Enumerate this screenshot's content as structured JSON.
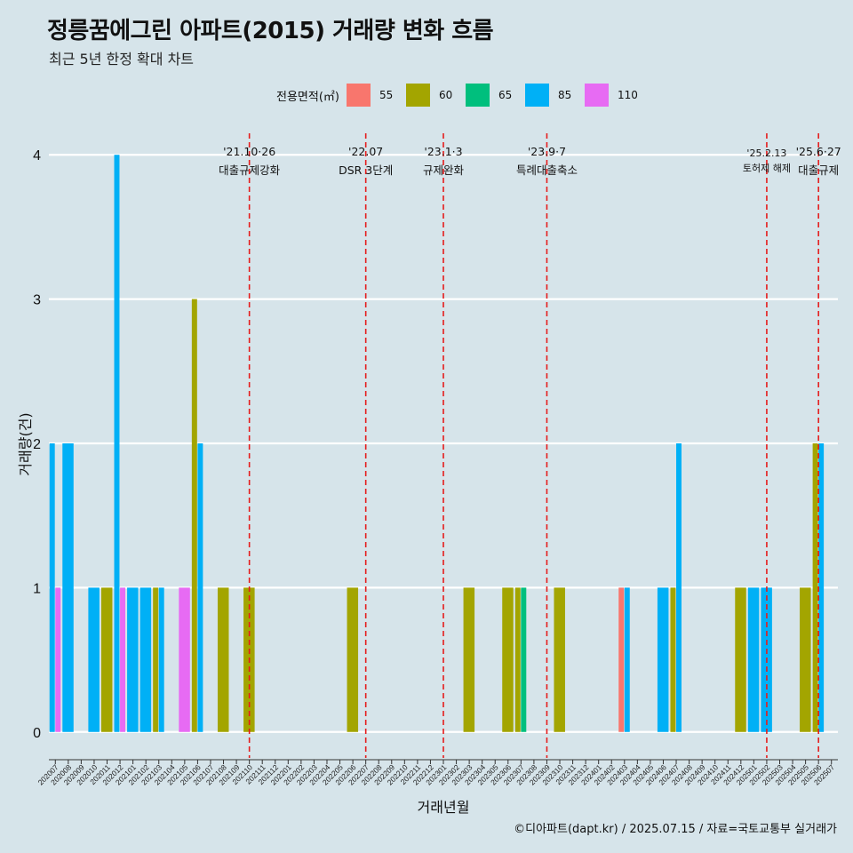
{
  "title": "정릉꿈에그린 아파트(2015) 거래량 변화 흐름",
  "subtitle": "최근 5년 한정 확대 차트",
  "caption": "©디아파트(dapt.kr) / 2025.07.15 / 자료=국토교통부 실거래가",
  "legend": {
    "title": "전용면적(㎡)",
    "items": [
      {
        "label": "55",
        "color": "#f8766d"
      },
      {
        "label": "60",
        "color": "#a3a500"
      },
      {
        "label": "65",
        "color": "#00bf7d"
      },
      {
        "label": "85",
        "color": "#00b0f6"
      },
      {
        "label": "110",
        "color": "#e76bf3"
      }
    ]
  },
  "chart_data": {
    "type": "bar",
    "xlabel": "거래년월",
    "ylabel": "거래량(건)",
    "ylim": [
      -0.18,
      4.18
    ],
    "yticks": [
      0,
      1,
      2,
      3,
      4
    ],
    "grid": true,
    "legend_position": "top",
    "categories": [
      "202007",
      "202008",
      "202009",
      "202010",
      "202011",
      "202012",
      "202101",
      "202102",
      "202103",
      "202104",
      "202105",
      "202106",
      "202107",
      "202108",
      "202109",
      "202110",
      "202111",
      "202112",
      "202201",
      "202202",
      "202203",
      "202204",
      "202205",
      "202206",
      "202207",
      "202208",
      "202209",
      "202210",
      "202211",
      "202212",
      "202301",
      "202302",
      "202303",
      "202304",
      "202305",
      "202306",
      "202307",
      "202308",
      "202309",
      "202310",
      "202311",
      "202312",
      "202401",
      "202402",
      "202403",
      "202404",
      "202405",
      "202406",
      "202407",
      "202408",
      "202409",
      "202410",
      "202411",
      "202412",
      "202501",
      "202502",
      "202503",
      "202504",
      "202505",
      "202506",
      "202507"
    ],
    "series": [
      {
        "name": "55",
        "color": "#f8766d",
        "values": [
          0,
          0,
          0,
          0,
          0,
          0,
          0,
          0,
          0,
          0,
          0,
          0,
          0,
          0,
          0,
          0,
          0,
          0,
          0,
          0,
          0,
          0,
          0,
          0,
          0,
          0,
          0,
          0,
          0,
          0,
          0,
          0,
          0,
          0,
          0,
          0,
          0,
          0,
          0,
          0,
          0,
          0,
          0,
          0,
          1,
          0,
          0,
          0,
          0,
          0,
          0,
          0,
          0,
          0,
          0,
          0,
          0,
          0,
          0,
          0,
          0
        ]
      },
      {
        "name": "60",
        "color": "#a3a500",
        "values": [
          0,
          0,
          0,
          0,
          1,
          0,
          0,
          0,
          1,
          0,
          0,
          3,
          0,
          1,
          0,
          1,
          0,
          0,
          0,
          0,
          0,
          0,
          0,
          1,
          0,
          0,
          0,
          0,
          0,
          0,
          0,
          0,
          1,
          0,
          0,
          1,
          1,
          0,
          0,
          1,
          0,
          0,
          0,
          0,
          0,
          0,
          0,
          0,
          1,
          0,
          0,
          0,
          0,
          1,
          0,
          0,
          0,
          0,
          1,
          2,
          0
        ]
      },
      {
        "name": "65",
        "color": "#00bf7d",
        "values": [
          0,
          0,
          0,
          0,
          0,
          0,
          0,
          0,
          0,
          0,
          0,
          0,
          0,
          0,
          0,
          0,
          0,
          0,
          0,
          0,
          0,
          0,
          0,
          0,
          0,
          0,
          0,
          0,
          0,
          0,
          0,
          0,
          0,
          0,
          0,
          0,
          1,
          0,
          0,
          0,
          0,
          0,
          0,
          0,
          0,
          0,
          0,
          0,
          0,
          0,
          0,
          0,
          0,
          0,
          0,
          0,
          0,
          0,
          0,
          0,
          0
        ]
      },
      {
        "name": "85",
        "color": "#00b0f6",
        "values": [
          2,
          2,
          0,
          1,
          0,
          4,
          1,
          1,
          1,
          0,
          0,
          2,
          0,
          0,
          0,
          0,
          0,
          0,
          0,
          0,
          0,
          0,
          0,
          0,
          0,
          0,
          0,
          0,
          0,
          0,
          0,
          0,
          0,
          0,
          0,
          0,
          0,
          0,
          0,
          0,
          0,
          0,
          0,
          0,
          1,
          0,
          0,
          1,
          2,
          0,
          0,
          0,
          0,
          0,
          1,
          1,
          0,
          0,
          0,
          2,
          0
        ]
      },
      {
        "name": "110",
        "color": "#e76bf3",
        "values": [
          1,
          0,
          0,
          0,
          0,
          1,
          0,
          0,
          0,
          0,
          1,
          0,
          0,
          0,
          0,
          0,
          0,
          0,
          0,
          0,
          0,
          0,
          0,
          0,
          0,
          0,
          0,
          0,
          0,
          0,
          0,
          0,
          0,
          0,
          0,
          0,
          0,
          0,
          0,
          0,
          0,
          0,
          0,
          0,
          0,
          0,
          0,
          0,
          0,
          0,
          0,
          0,
          0,
          0,
          0,
          0,
          0,
          0,
          0,
          0,
          0
        ]
      }
    ],
    "annotations": [
      {
        "x": "202110",
        "label": "'21.10·26",
        "sublabel": "대출규제강화"
      },
      {
        "x": "202207",
        "label": "'22.07",
        "sublabel": "DSR 3단계"
      },
      {
        "x": "202301",
        "label": "'23.1·3",
        "sublabel": "규제완화"
      },
      {
        "x": "202309",
        "label": "'23.9·7",
        "sublabel": "특례대출축소"
      },
      {
        "x": "202502",
        "label": "'25.2.13",
        "sublabel": "토허제 해제"
      },
      {
        "x": "202506",
        "label": "'25.6·27",
        "sublabel": "대출규제"
      }
    ]
  }
}
